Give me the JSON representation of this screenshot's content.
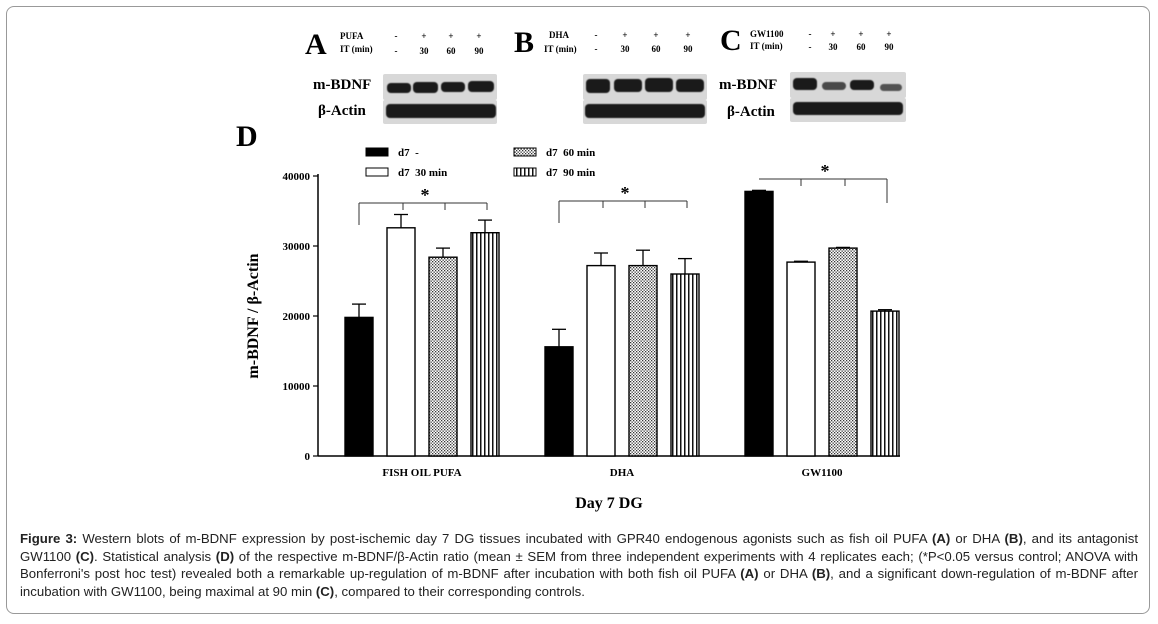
{
  "blots": [
    {
      "letter": "A",
      "treatment_label": "PUFA",
      "time_label": "IT (min)",
      "treatment_values": [
        "-",
        "+",
        "+",
        "+"
      ],
      "time_values": [
        "-",
        "30",
        "60",
        "90"
      ],
      "rows": [
        "m-BDNF",
        "β-Actin"
      ]
    },
    {
      "letter": "B",
      "treatment_label": "DHA",
      "time_label": "IT (min)",
      "treatment_values": [
        "-",
        "+",
        "+",
        "+"
      ],
      "time_values": [
        "-",
        "30",
        "60",
        "90"
      ],
      "rows": []
    },
    {
      "letter": "C",
      "treatment_label": "GW1100",
      "time_label": "IT (min)",
      "treatment_values": [
        "-",
        "+",
        "+",
        "+"
      ],
      "time_values": [
        "-",
        "30",
        "60",
        "90"
      ],
      "rows": [
        "m-BDNF",
        "β-Actin"
      ]
    }
  ],
  "chart_data": {
    "type": "bar",
    "panel_letter": "D",
    "title": "",
    "xlabel": "Day 7 DG",
    "ylabel": "m-BDNF / β-Actin",
    "ylim": [
      0,
      40000
    ],
    "yticks": [
      "0",
      "10000",
      "20000",
      "30000",
      "40000"
    ],
    "categories": [
      "FISH OIL PUFA",
      "DHA",
      "GW1100"
    ],
    "series": [
      {
        "name": "d7  -",
        "pattern": "solid",
        "values": [
          19800,
          15600,
          37800
        ],
        "errors": [
          1900,
          2500,
          150
        ]
      },
      {
        "name": "d7  30 min",
        "pattern": "white",
        "values": [
          32600,
          27200,
          27700
        ],
        "errors": [
          1900,
          1800,
          120
        ]
      },
      {
        "name": "d7  60 min",
        "pattern": "dots",
        "values": [
          28400,
          27200,
          29700
        ],
        "errors": [
          1300,
          2200,
          100
        ]
      },
      {
        "name": "d7  90 min",
        "pattern": "vstripes",
        "values": [
          31900,
          26000,
          20700
        ],
        "errors": [
          1800,
          2200,
          200
        ]
      }
    ],
    "significance": [
      "*",
      "*",
      "*"
    ]
  },
  "caption": {
    "label": "Figure 3:",
    "text": "Western blots of m-BDNF expression by post-ischemic day 7 DG tissues incubated with GPR40 endogenous agonists such as fish oil PUFA (A) or DHA (B), and its antagonist GW1100 (C). Statistical analysis (D) of the respective m-BDNF/β-Actin ratio (mean ± SEM from three independent experiments with 4 replicates each; (*P<0.05 versus control; ANOVA with Bonferroni's post hoc test) revealed both a remarkable up-regulation of m-BDNF after incubation with both fish oil PUFA (A) or DHA (B), and a significant down-regulation of m-BDNF after incubation with GW1100, being maximal at 90 min (C), compared to their corresponding controls."
  }
}
